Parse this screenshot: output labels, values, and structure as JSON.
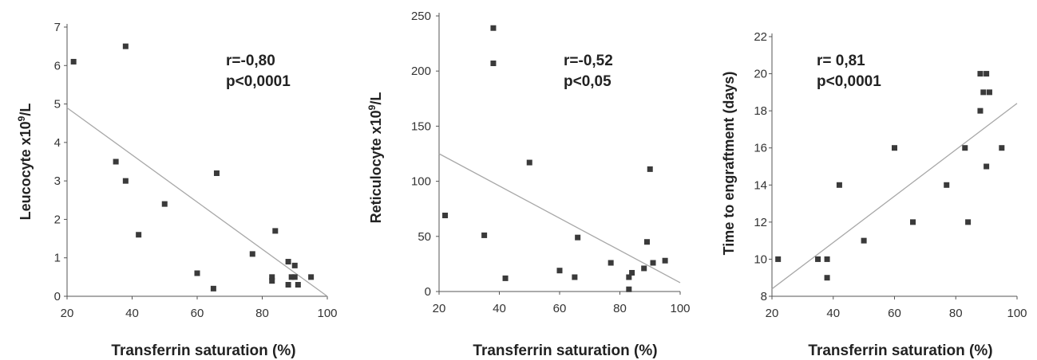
{
  "chart_data": [
    {
      "type": "scatter",
      "xlabel": "Transferrin saturation (%)",
      "ylabel": "Leucocyte x10",
      "ylabel_sup": "9",
      "ylabel_tail": "/L",
      "annotation": [
        "r=-0,80",
        "p<0,0001"
      ],
      "xlim": [
        20,
        100
      ],
      "ylim": [
        0,
        7
      ],
      "xticks": [
        20,
        40,
        60,
        80,
        100
      ],
      "yticks": [
        0,
        1,
        2,
        3,
        4,
        5,
        6,
        7
      ],
      "fit_line": [
        [
          20,
          4.9
        ],
        [
          100,
          0.0
        ]
      ],
      "x": [
        22,
        35,
        38,
        38,
        42,
        50,
        60,
        65,
        66,
        77,
        83,
        83,
        84,
        88,
        88,
        89,
        90,
        90,
        91,
        95
      ],
      "y": [
        6.1,
        3.5,
        6.5,
        3.0,
        1.6,
        2.4,
        0.6,
        0.2,
        3.2,
        1.1,
        0.5,
        0.4,
        1.7,
        0.3,
        0.9,
        0.5,
        0.8,
        0.5,
        0.3,
        0.5
      ]
    },
    {
      "type": "scatter",
      "xlabel": "Transferrin saturation (%)",
      "ylabel": "Reticulocyte x10",
      "ylabel_sup": "9",
      "ylabel_tail": "/L",
      "annotation": [
        "r=-0,52",
        "p<0,05"
      ],
      "xlim": [
        20,
        100
      ],
      "ylim": [
        0,
        250
      ],
      "xticks": [
        20,
        40,
        60,
        80,
        100
      ],
      "yticks": [
        0,
        50,
        100,
        150,
        200,
        250
      ],
      "fit_line": [
        [
          20,
          125
        ],
        [
          100,
          8
        ]
      ],
      "x": [
        22,
        35,
        38,
        38,
        42,
        50,
        60,
        65,
        66,
        77,
        83,
        83,
        84,
        88,
        89,
        90,
        91,
        95
      ],
      "y": [
        69,
        51,
        239,
        207,
        12,
        117,
        19,
        13,
        49,
        26,
        2,
        13,
        17,
        21,
        45,
        111,
        26,
        28
      ]
    },
    {
      "type": "scatter",
      "xlabel": "Transferrin saturation (%)",
      "ylabel": "Time to engraftment (days)",
      "annotation": [
        "r= 0,81",
        "p<0,0001"
      ],
      "xlim": [
        20,
        100
      ],
      "ylim": [
        8,
        22
      ],
      "xticks": [
        20,
        40,
        60,
        80,
        100
      ],
      "yticks": [
        8,
        10,
        12,
        14,
        16,
        18,
        20,
        22
      ],
      "fit_line": [
        [
          20,
          8.4
        ],
        [
          100,
          18.4
        ]
      ],
      "x": [
        22,
        35,
        38,
        38,
        42,
        50,
        60,
        66,
        77,
        83,
        84,
        88,
        88,
        89,
        90,
        90,
        91,
        95
      ],
      "y": [
        10,
        10,
        10,
        9,
        14,
        11,
        16,
        12,
        14,
        16,
        12,
        20,
        18,
        19,
        15,
        20,
        19,
        16
      ]
    }
  ]
}
